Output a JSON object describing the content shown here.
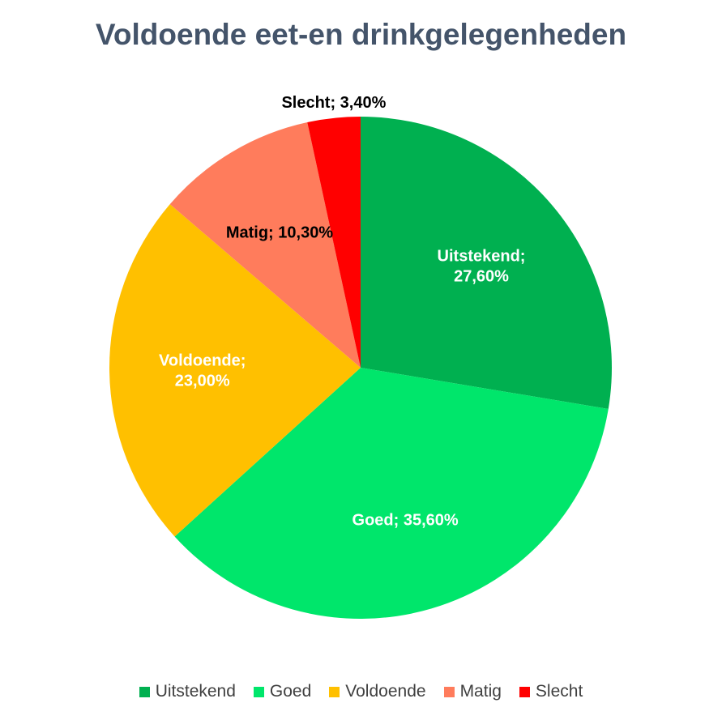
{
  "chart_data": {
    "type": "pie",
    "title": "Voldoende eet-en drinkgelegenheden",
    "categories": [
      "Uitstekend",
      "Goed",
      "Voldoende",
      "Matig",
      "Slecht"
    ],
    "values": [
      27.6,
      35.6,
      23.0,
      10.3,
      3.4
    ],
    "data_labels": [
      [
        "Uitstekend;",
        "27,60%"
      ],
      [
        "Goed; 35,60%"
      ],
      [
        "Voldoende;",
        "23,00%"
      ],
      [
        "Matig; 10,30%"
      ],
      [
        "Slecht; 3,40%"
      ]
    ],
    "colors": [
      "#00b050",
      "#00e66b",
      "#ffc000",
      "#ff7c5c",
      "#ff0000"
    ],
    "label_colors": [
      "#ffffff",
      "#ffffff",
      "#ffffff",
      "#000000",
      "#000000"
    ],
    "start_angle_deg": 0,
    "direction": "clockwise",
    "legend_position": "bottom"
  }
}
